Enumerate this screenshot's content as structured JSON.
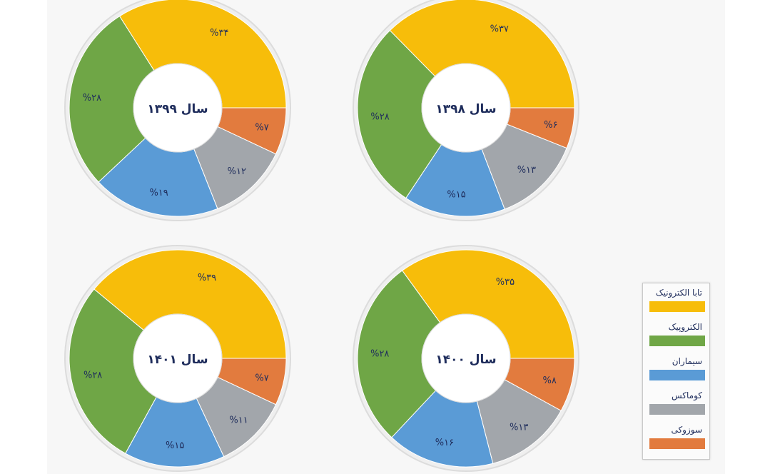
{
  "colors": {
    "tava": "#f7bd0a",
    "electropeyk": "#6fa646",
    "simaran": "#5a9bd6",
    "komax": "#a2a6ab",
    "suzuki": "#e27b3e",
    "ring_border": "#dcdcdc",
    "label_text": "#1f2d5c"
  },
  "legend": {
    "items": [
      {
        "label": "تابا الکترونیک",
        "color": "#f7bd0a"
      },
      {
        "label": "الکتروپیک",
        "color": "#6fa646"
      },
      {
        "label": "سیماران",
        "color": "#5a9bd6"
      },
      {
        "label": "کوماکس",
        "color": "#a2a6ab"
      },
      {
        "label": "سوزوکی",
        "color": "#e27b3e"
      }
    ]
  },
  "chart_data": [
    {
      "type": "pie",
      "center_label": "سال ۱۳۹۹",
      "categories": [
        "تابا الکترونیک",
        "الکتروپیک",
        "سیماران",
        "کوماکس",
        "سوزوکی"
      ],
      "values": [
        34,
        28,
        19,
        12,
        7
      ],
      "data_labels": [
        "%۳۴",
        "%۲۸",
        "%۱۹",
        "%۱۲",
        "%۷"
      ]
    },
    {
      "type": "pie",
      "center_label": "سال ۱۳۹۸",
      "categories": [
        "تابا الکترونیک",
        "الکتروپیک",
        "سیماران",
        "کوماکس",
        "سوزوکی"
      ],
      "values": [
        37,
        28,
        15,
        13,
        6
      ],
      "data_labels": [
        "%۳۷",
        "%۲۸",
        "%۱۵",
        "%۱۳",
        "%۶"
      ]
    },
    {
      "type": "pie",
      "center_label": "سال ۱۴۰۱",
      "categories": [
        "تابا الکترونیک",
        "الکتروپیک",
        "سیماران",
        "کوماکس",
        "سوزوکی"
      ],
      "values": [
        39,
        28,
        15,
        11,
        7
      ],
      "data_labels": [
        "%۳۹",
        "%۲۸",
        "%۱۵",
        "%۱۱",
        "%۷"
      ]
    },
    {
      "type": "pie",
      "center_label": "سال ۱۴۰۰",
      "categories": [
        "تابا الکترونیک",
        "الکتروپیک",
        "سیماران",
        "کوماکس",
        "سوزوکی"
      ],
      "values": [
        35,
        28,
        16,
        13,
        8
      ],
      "data_labels": [
        "%۳۵",
        "%۲۸",
        "%۱۶",
        "%۱۳",
        "%۸"
      ]
    }
  ]
}
